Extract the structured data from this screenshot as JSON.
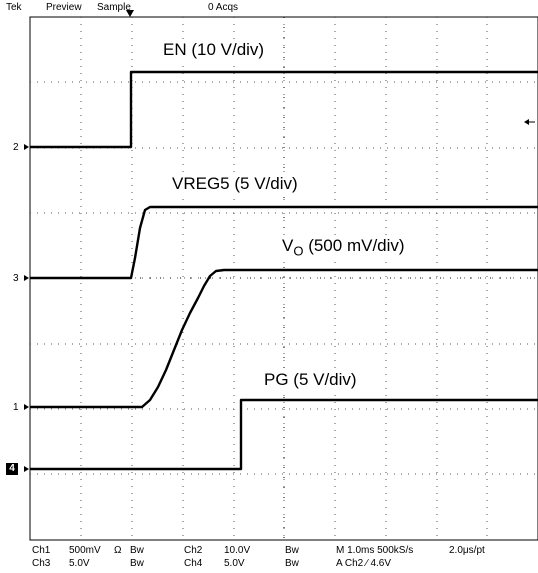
{
  "header": {
    "brand": "Tek",
    "mode": "Preview",
    "acq_mode": "Sample",
    "acqs": "0 Acqs"
  },
  "channels": {
    "en_label": "EN (10 V/div)",
    "vreg5_label": "VREG5 (5 V/div)",
    "vo_label_main": "V",
    "vo_label_sub": "O",
    "vo_label_rest": " (500 mV/div)",
    "pg_label": "PG (5 V/div)"
  },
  "markers": {
    "ch2": "2",
    "ch3": "3",
    "ch1": "1",
    "ch4": "4"
  },
  "footer": {
    "r1": {
      "ch1": "Ch1",
      "ch1_scale": "500mV",
      "ch1_imp": "Ω",
      "ch1_bw": "Bw",
      "ch2": "Ch2",
      "ch2_scale": "10.0V",
      "ch2_bw": "Bw",
      "timebase": "M 1.0ms 500kS/s",
      "resolution": "2.0μs/pt"
    },
    "r2": {
      "ch3": "Ch3",
      "ch3_scale": "5.0V",
      "ch3_bw": "Bw",
      "ch4": "Ch4",
      "ch4_scale": "5.0V",
      "ch4_bw": "Bw",
      "trigger": "A Ch2 ∕ 4.6V"
    }
  }
}
